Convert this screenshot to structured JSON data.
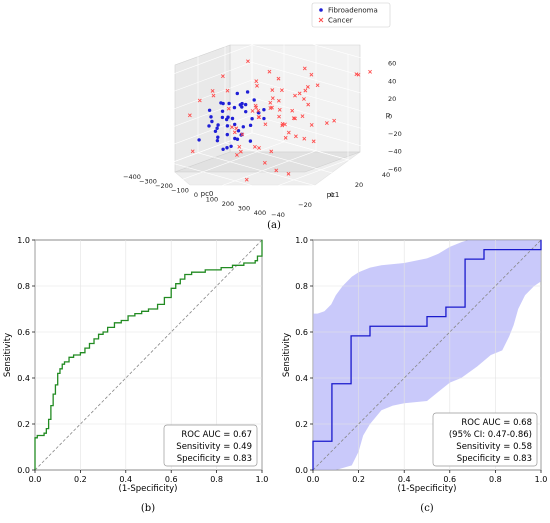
{
  "chart_data": [
    {
      "type": "scatter",
      "panel_label": "(a)",
      "legend": [
        {
          "name": "Fibroadenoma",
          "color": "#1f1fd6",
          "marker": "circle"
        },
        {
          "name": "Cancer",
          "color": "#ff4d4d",
          "marker": "x"
        }
      ],
      "legend_position": "top-right",
      "x_axis": {
        "label": "pc0",
        "ticks": [
          "-400",
          "-300",
          "-200",
          "-100",
          "0",
          "100",
          "200",
          "300",
          "400"
        ],
        "range": [
          -400,
          400
        ]
      },
      "y_axis": {
        "label": "pc1",
        "ticks": [
          "-40",
          "-20",
          "0",
          "20",
          "40"
        ],
        "range": [
          -40,
          40
        ]
      },
      "z_axis": {
        "label": "p",
        "ticks": [
          "-60",
          "-40",
          "-20",
          "0",
          "20",
          "40",
          "60"
        ],
        "range": [
          -60,
          60
        ]
      },
      "grid": true,
      "fibroadenoma_points": [
        [
          -150,
          -20,
          5
        ],
        [
          -120,
          -15,
          10
        ],
        [
          -100,
          -10,
          0
        ],
        [
          -80,
          -25,
          -5
        ],
        [
          -60,
          -5,
          15
        ],
        [
          -40,
          -10,
          20
        ],
        [
          -20,
          0,
          5
        ],
        [
          0,
          -15,
          -10
        ],
        [
          20,
          -5,
          10
        ],
        [
          -140,
          -30,
          -15
        ],
        [
          -110,
          -20,
          -20
        ],
        [
          -90,
          0,
          25
        ],
        [
          -70,
          -10,
          30
        ],
        [
          -50,
          -20,
          -25
        ],
        [
          -30,
          5,
          -5
        ],
        [
          -10,
          -25,
          12
        ],
        [
          10,
          -30,
          -18
        ],
        [
          -130,
          -5,
          8
        ],
        [
          -95,
          -28,
          2
        ],
        [
          -65,
          -18,
          -12
        ],
        [
          -45,
          -2,
          -2
        ],
        [
          -25,
          -12,
          18
        ],
        [
          -5,
          -8,
          -22
        ],
        [
          15,
          -22,
          6
        ],
        [
          -115,
          -12,
          -8
        ],
        [
          -85,
          -6,
          14
        ],
        [
          -55,
          -26,
          4
        ],
        [
          -35,
          -16,
          -16
        ],
        [
          -15,
          -4,
          22
        ],
        [
          5,
          -18,
          -4
        ],
        [
          -125,
          -24,
          16
        ],
        [
          -75,
          -14,
          -28
        ],
        [
          -20,
          -22,
          28
        ],
        [
          -60,
          -30,
          10
        ],
        [
          -100,
          -2,
          -14
        ],
        [
          -40,
          -28,
          -8
        ],
        [
          30,
          -12,
          0
        ],
        [
          -145,
          -8,
          -2
        ],
        [
          -5,
          2,
          8
        ],
        [
          -88,
          -20,
          24
        ],
        [
          -52,
          -12,
          -20
        ],
        [
          -28,
          -26,
          14
        ],
        [
          -68,
          -4,
          6
        ],
        [
          -108,
          -16,
          20
        ],
        [
          -12,
          -14,
          -12
        ],
        [
          -78,
          -24,
          -2
        ]
      ],
      "cancer_points": [
        [
          -300,
          10,
          10
        ],
        [
          -250,
          5,
          -5
        ],
        [
          -200,
          20,
          15
        ],
        [
          -180,
          -30,
          -30
        ],
        [
          -150,
          30,
          20
        ],
        [
          -120,
          10,
          30
        ],
        [
          -100,
          25,
          -10
        ],
        [
          -80,
          15,
          40
        ],
        [
          -60,
          35,
          5
        ],
        [
          -40,
          20,
          -20
        ],
        [
          -20,
          10,
          25
        ],
        [
          0,
          30,
          -15
        ],
        [
          20,
          5,
          10
        ],
        [
          40,
          -10,
          -25
        ],
        [
          60,
          25,
          20
        ],
        [
          80,
          15,
          -5
        ],
        [
          100,
          -5,
          -30
        ],
        [
          120,
          20,
          10
        ],
        [
          150,
          -20,
          -15
        ],
        [
          180,
          10,
          -20
        ],
        [
          200,
          -35,
          -40
        ],
        [
          220,
          5,
          30
        ],
        [
          250,
          -10,
          -45
        ],
        [
          300,
          -25,
          -30
        ],
        [
          350,
          30,
          50
        ],
        [
          380,
          35,
          52
        ],
        [
          320,
          32,
          48
        ],
        [
          -220,
          -20,
          20
        ],
        [
          -160,
          -10,
          45
        ],
        [
          -130,
          5,
          55
        ],
        [
          -90,
          -5,
          -40
        ],
        [
          -70,
          40,
          30
        ],
        [
          -30,
          -15,
          -35
        ],
        [
          10,
          40,
          15
        ],
        [
          30,
          20,
          -10
        ],
        [
          50,
          -25,
          5
        ],
        [
          70,
          30,
          -40
        ],
        [
          90,
          -15,
          25
        ],
        [
          110,
          35,
          -20
        ],
        [
          130,
          -30,
          5
        ],
        [
          160,
          15,
          35
        ],
        [
          190,
          -5,
          -10
        ],
        [
          -270,
          25,
          -20
        ],
        [
          -240,
          -25,
          5
        ],
        [
          -190,
          35,
          -10
        ],
        [
          -170,
          0,
          -25
        ],
        [
          -140,
          -20,
          35
        ],
        [
          -110,
          28,
          -30
        ],
        [
          -50,
          -30,
          40
        ],
        [
          -10,
          38,
          -30
        ],
        [
          60,
          -5,
          -45
        ],
        [
          140,
          20,
          45
        ],
        [
          240,
          25,
          -5
        ],
        [
          270,
          -15,
          15
        ],
        [
          -60,
          5,
          -5
        ],
        [
          -40,
          0,
          12
        ],
        [
          -20,
          15,
          -8
        ],
        [
          0,
          8,
          18
        ],
        [
          20,
          20,
          -2
        ],
        [
          -80,
          12,
          -18
        ],
        [
          40,
          10,
          28
        ],
        [
          -100,
          18,
          2
        ],
        [
          -120,
          -8,
          -12
        ],
        [
          80,
          -12,
          12
        ],
        [
          100,
          8,
          -16
        ],
        [
          -30,
          28,
          8
        ],
        [
          10,
          -18,
          -22
        ],
        [
          60,
          18,
          -28
        ],
        [
          -150,
          15,
          -8
        ],
        [
          120,
          -8,
          22
        ]
      ]
    },
    {
      "type": "line",
      "panel_label": "(b)",
      "xlabel": "(1-Specificity)",
      "ylabel": "Sensitivity",
      "xlim": [
        0,
        1
      ],
      "ylim": [
        0,
        1
      ],
      "ticks": [
        "0.0",
        "0.2",
        "0.4",
        "0.6",
        "0.8",
        "1.0"
      ],
      "grid": true,
      "roc_color": "#228b22",
      "diagonal": true,
      "annotation": [
        "ROC AUC = 0.67",
        "Sensitivity = 0.49",
        "Specificity = 0.83"
      ],
      "roc_points": [
        [
          0,
          0
        ],
        [
          0,
          0.14
        ],
        [
          0.01,
          0.14
        ],
        [
          0.01,
          0.15
        ],
        [
          0.04,
          0.15
        ],
        [
          0.04,
          0.16
        ],
        [
          0.05,
          0.16
        ],
        [
          0.05,
          0.18
        ],
        [
          0.06,
          0.18
        ],
        [
          0.06,
          0.22
        ],
        [
          0.07,
          0.22
        ],
        [
          0.07,
          0.28
        ],
        [
          0.08,
          0.28
        ],
        [
          0.08,
          0.33
        ],
        [
          0.09,
          0.33
        ],
        [
          0.09,
          0.37
        ],
        [
          0.1,
          0.37
        ],
        [
          0.1,
          0.42
        ],
        [
          0.11,
          0.42
        ],
        [
          0.11,
          0.44
        ],
        [
          0.12,
          0.44
        ],
        [
          0.12,
          0.46
        ],
        [
          0.13,
          0.46
        ],
        [
          0.13,
          0.47
        ],
        [
          0.15,
          0.47
        ],
        [
          0.15,
          0.49
        ],
        [
          0.17,
          0.49
        ],
        [
          0.17,
          0.5
        ],
        [
          0.2,
          0.5
        ],
        [
          0.2,
          0.51
        ],
        [
          0.22,
          0.51
        ],
        [
          0.22,
          0.53
        ],
        [
          0.24,
          0.53
        ],
        [
          0.24,
          0.55
        ],
        [
          0.26,
          0.55
        ],
        [
          0.26,
          0.57
        ],
        [
          0.28,
          0.57
        ],
        [
          0.28,
          0.59
        ],
        [
          0.3,
          0.59
        ],
        [
          0.3,
          0.6
        ],
        [
          0.32,
          0.6
        ],
        [
          0.32,
          0.62
        ],
        [
          0.35,
          0.62
        ],
        [
          0.35,
          0.64
        ],
        [
          0.38,
          0.64
        ],
        [
          0.38,
          0.65
        ],
        [
          0.41,
          0.65
        ],
        [
          0.41,
          0.67
        ],
        [
          0.44,
          0.67
        ],
        [
          0.44,
          0.68
        ],
        [
          0.47,
          0.68
        ],
        [
          0.47,
          0.69
        ],
        [
          0.5,
          0.69
        ],
        [
          0.5,
          0.7
        ],
        [
          0.54,
          0.7
        ],
        [
          0.54,
          0.72
        ],
        [
          0.57,
          0.72
        ],
        [
          0.57,
          0.75
        ],
        [
          0.6,
          0.75
        ],
        [
          0.6,
          0.79
        ],
        [
          0.62,
          0.79
        ],
        [
          0.62,
          0.81
        ],
        [
          0.64,
          0.81
        ],
        [
          0.64,
          0.83
        ],
        [
          0.66,
          0.83
        ],
        [
          0.66,
          0.85
        ],
        [
          0.69,
          0.85
        ],
        [
          0.69,
          0.86
        ],
        [
          0.75,
          0.86
        ],
        [
          0.75,
          0.87
        ],
        [
          0.82,
          0.87
        ],
        [
          0.82,
          0.88
        ],
        [
          0.87,
          0.88
        ],
        [
          0.87,
          0.89
        ],
        [
          0.92,
          0.89
        ],
        [
          0.92,
          0.9
        ],
        [
          0.97,
          0.9
        ],
        [
          0.97,
          0.91
        ],
        [
          0.98,
          0.91
        ],
        [
          0.98,
          0.93
        ],
        [
          1.0,
          0.93
        ],
        [
          1.0,
          1.0
        ]
      ]
    },
    {
      "type": "line",
      "panel_label": "(c)",
      "xlabel": "(1-Specificity)",
      "ylabel": "Sensitivity",
      "xlim": [
        0,
        1
      ],
      "ylim": [
        0,
        1
      ],
      "ticks": [
        "0.0",
        "0.2",
        "0.4",
        "0.6",
        "0.8",
        "1.0"
      ],
      "grid": true,
      "roc_color": "#1a1acc",
      "band_color": "#9c9cf5",
      "diagonal": true,
      "annotation": [
        "ROC AUC = 0.68",
        "(95% CI: 0.47-0.86)",
        "Sensitivity = 0.58",
        "Specificity = 0.83"
      ],
      "roc_points": [
        [
          0,
          0
        ],
        [
          0,
          0.125
        ],
        [
          0.083,
          0.125
        ],
        [
          0.083,
          0.375
        ],
        [
          0.167,
          0.375
        ],
        [
          0.167,
          0.583
        ],
        [
          0.25,
          0.583
        ],
        [
          0.25,
          0.625
        ],
        [
          0.5,
          0.625
        ],
        [
          0.5,
          0.667
        ],
        [
          0.583,
          0.667
        ],
        [
          0.583,
          0.708
        ],
        [
          0.667,
          0.708
        ],
        [
          0.667,
          0.917
        ],
        [
          0.75,
          0.917
        ],
        [
          0.75,
          0.958
        ],
        [
          1.0,
          0.958
        ],
        [
          1.0,
          1.0
        ]
      ],
      "ci_upper": [
        [
          0,
          0.68
        ],
        [
          0.02,
          0.68
        ],
        [
          0.05,
          0.69
        ],
        [
          0.08,
          0.72
        ],
        [
          0.1,
          0.76
        ],
        [
          0.13,
          0.8
        ],
        [
          0.17,
          0.84
        ],
        [
          0.2,
          0.86
        ],
        [
          0.25,
          0.88
        ],
        [
          0.3,
          0.89
        ],
        [
          0.4,
          0.9
        ],
        [
          0.5,
          0.92
        ],
        [
          0.55,
          0.94
        ],
        [
          0.6,
          0.97
        ],
        [
          0.65,
          0.99
        ],
        [
          0.68,
          1.0
        ],
        [
          1.0,
          1.0
        ]
      ],
      "ci_lower": [
        [
          0,
          0
        ],
        [
          0.1,
          0
        ],
        [
          0.17,
          0.02
        ],
        [
          0.2,
          0.08
        ],
        [
          0.22,
          0.15
        ],
        [
          0.25,
          0.2
        ],
        [
          0.3,
          0.26
        ],
        [
          0.35,
          0.28
        ],
        [
          0.4,
          0.29
        ],
        [
          0.5,
          0.3
        ],
        [
          0.55,
          0.34
        ],
        [
          0.6,
          0.38
        ],
        [
          0.65,
          0.4
        ],
        [
          0.72,
          0.45
        ],
        [
          0.78,
          0.5
        ],
        [
          0.83,
          0.52
        ],
        [
          0.86,
          0.58
        ],
        [
          0.88,
          0.63
        ],
        [
          0.9,
          0.7
        ],
        [
          0.93,
          0.76
        ],
        [
          0.97,
          0.8
        ],
        [
          1.0,
          0.82
        ]
      ]
    }
  ]
}
